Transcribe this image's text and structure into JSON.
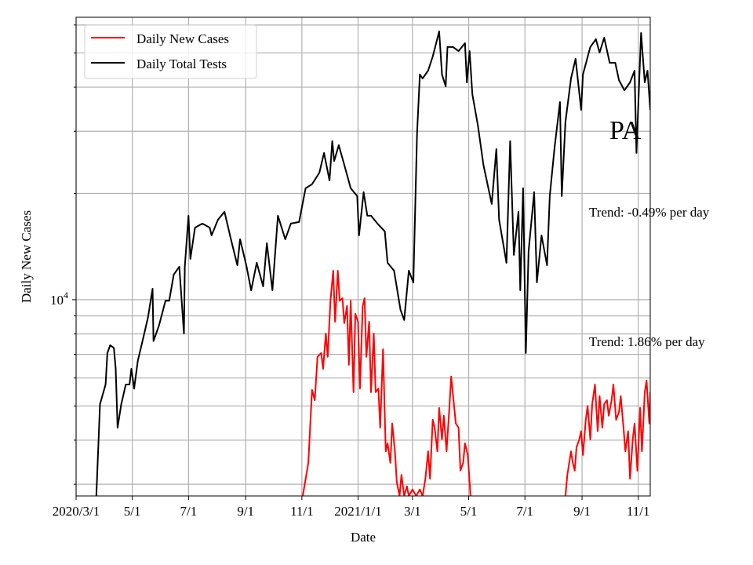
{
  "chart_data": {
    "type": "line",
    "title": "",
    "xlabel": "Date",
    "ylabel": "Daily New Cases",
    "y_scale": "log",
    "ylim": [
      2780,
      63100
    ],
    "xlim": [
      "2020-03-01",
      "2021-11-14"
    ],
    "grid": true,
    "legend_position": "top-left",
    "x_ticks": [
      {
        "date": "2020-03-01",
        "label": "2020/3/1"
      },
      {
        "date": "2020-05-01",
        "label": "5/1"
      },
      {
        "date": "2020-07-01",
        "label": "7/1"
      },
      {
        "date": "2020-09-01",
        "label": "9/1"
      },
      {
        "date": "2020-11-01",
        "label": "11/1"
      },
      {
        "date": "2021-01-01",
        "label": "2021/1/1"
      },
      {
        "date": "2021-03-01",
        "label": "3/1"
      },
      {
        "date": "2021-05-01",
        "label": "5/1"
      },
      {
        "date": "2021-07-01",
        "label": "7/1"
      },
      {
        "date": "2021-09-01",
        "label": "9/1"
      },
      {
        "date": "2021-11-01",
        "label": "11/1"
      }
    ],
    "y_major_tick": {
      "value": 10000,
      "label_base": "10",
      "label_exp": "4"
    },
    "y_minor_ticks": [
      3000,
      4000,
      5000,
      6000,
      7000,
      8000,
      9000,
      20000,
      30000,
      40000,
      50000,
      60000
    ],
    "annotations": [
      {
        "text": "PA",
        "kind": "state"
      },
      {
        "text": "Trend: -0.49% per day",
        "kind": "tests-trend"
      },
      {
        "text": "Trend: 1.86% per day",
        "kind": "cases-trend"
      }
    ],
    "series": [
      {
        "name": "Daily New Cases",
        "color": "#ff0000",
        "points": [
          [
            "2020-11-02",
            2780
          ],
          [
            "2020-11-08",
            3450
          ],
          [
            "2020-11-12",
            5550
          ],
          [
            "2020-11-15",
            5190
          ],
          [
            "2020-11-18",
            6890
          ],
          [
            "2020-11-22",
            7060
          ],
          [
            "2020-11-24",
            6370
          ],
          [
            "2020-11-27",
            8020
          ],
          [
            "2020-11-29",
            6890
          ],
          [
            "2020-12-02",
            9930
          ],
          [
            "2020-12-05",
            12080
          ],
          [
            "2020-12-07",
            8660
          ],
          [
            "2020-12-10",
            12080
          ],
          [
            "2020-12-12",
            9930
          ],
          [
            "2020-12-15",
            10100
          ],
          [
            "2020-12-17",
            8580
          ],
          [
            "2020-12-20",
            9600
          ],
          [
            "2020-12-22",
            6540
          ],
          [
            "2020-12-24",
            9930
          ],
          [
            "2020-12-27",
            5470
          ],
          [
            "2020-12-29",
            9120
          ],
          [
            "2021-01-01",
            8660
          ],
          [
            "2021-01-03",
            5600
          ],
          [
            "2021-01-06",
            9600
          ],
          [
            "2021-01-08",
            10100
          ],
          [
            "2021-01-10",
            6890
          ],
          [
            "2021-01-13",
            8660
          ],
          [
            "2021-01-15",
            5470
          ],
          [
            "2021-01-18",
            8020
          ],
          [
            "2021-01-20",
            5470
          ],
          [
            "2021-01-23",
            5600
          ],
          [
            "2021-01-25",
            4340
          ],
          [
            "2021-01-28",
            7240
          ],
          [
            "2021-01-31",
            3720
          ],
          [
            "2021-02-02",
            3920
          ],
          [
            "2021-02-05",
            3450
          ],
          [
            "2021-02-07",
            4460
          ],
          [
            "2021-02-10",
            3720
          ],
          [
            "2021-02-12",
            3040
          ],
          [
            "2021-02-15",
            2780
          ],
          [
            "2021-02-17",
            3190
          ],
          [
            "2021-02-20",
            2780
          ],
          [
            "2021-02-23",
            2960
          ],
          [
            "2021-02-25",
            2780
          ],
          [
            "2021-03-01",
            2900
          ],
          [
            "2021-03-05",
            2780
          ],
          [
            "2021-03-09",
            2900
          ],
          [
            "2021-03-12",
            2780
          ],
          [
            "2021-03-15",
            3110
          ],
          [
            "2021-03-18",
            3720
          ],
          [
            "2021-03-20",
            3110
          ],
          [
            "2021-03-23",
            4570
          ],
          [
            "2021-03-25",
            4340
          ],
          [
            "2021-03-28",
            3720
          ],
          [
            "2021-03-30",
            4940
          ],
          [
            "2021-04-02",
            4020
          ],
          [
            "2021-04-04",
            4690
          ],
          [
            "2021-04-07",
            3720
          ],
          [
            "2021-04-10",
            4940
          ],
          [
            "2021-04-12",
            6060
          ],
          [
            "2021-04-15",
            5060
          ],
          [
            "2021-04-17",
            4460
          ],
          [
            "2021-04-20",
            4340
          ],
          [
            "2021-04-22",
            3280
          ],
          [
            "2021-04-25",
            3450
          ],
          [
            "2021-04-27",
            3920
          ],
          [
            "2021-04-30",
            3630
          ],
          [
            "2021-05-03",
            2780
          ],
          null,
          [
            "2021-08-14",
            2780
          ],
          [
            "2021-08-16",
            3190
          ],
          [
            "2021-08-20",
            3720
          ],
          [
            "2021-08-22",
            3450
          ],
          [
            "2021-08-24",
            3280
          ],
          [
            "2021-08-26",
            3820
          ],
          [
            "2021-08-29",
            4020
          ],
          [
            "2021-08-31",
            4240
          ],
          [
            "2021-09-02",
            3630
          ],
          [
            "2021-09-05",
            4570
          ],
          [
            "2021-09-07",
            5000
          ],
          [
            "2021-09-10",
            4020
          ],
          [
            "2021-09-12",
            5060
          ],
          [
            "2021-09-15",
            5750
          ],
          [
            "2021-09-18",
            4240
          ],
          [
            "2021-09-20",
            5330
          ],
          [
            "2021-09-23",
            4340
          ],
          [
            "2021-09-25",
            5060
          ],
          [
            "2021-09-28",
            5190
          ],
          [
            "2021-09-30",
            4690
          ],
          [
            "2021-10-03",
            5190
          ],
          [
            "2021-10-05",
            5750
          ],
          [
            "2021-10-08",
            4570
          ],
          [
            "2021-10-11",
            4800
          ],
          [
            "2021-10-13",
            5330
          ],
          [
            "2021-10-16",
            4340
          ],
          [
            "2021-10-18",
            3720
          ],
          [
            "2021-10-21",
            4240
          ],
          [
            "2021-10-23",
            3110
          ],
          [
            "2021-10-26",
            4020
          ],
          [
            "2021-10-28",
            4460
          ],
          [
            "2021-10-31",
            3280
          ],
          [
            "2021-11-03",
            4940
          ],
          [
            "2021-11-05",
            3720
          ],
          [
            "2021-11-08",
            5470
          ],
          [
            "2021-11-10",
            5900
          ],
          [
            "2021-11-13",
            4460
          ],
          [
            "2021-11-14",
            5470
          ]
        ]
      },
      {
        "name": "Daily Total Tests",
        "color": "#000000",
        "points": [
          [
            "2020-03-23",
            2780
          ],
          [
            "2020-03-27",
            5060
          ],
          [
            "2020-04-02",
            5750
          ],
          [
            "2020-04-04",
            7060
          ],
          [
            "2020-04-07",
            7430
          ],
          [
            "2020-04-11",
            7300
          ],
          [
            "2020-04-13",
            6370
          ],
          [
            "2020-04-15",
            4340
          ],
          [
            "2020-04-19",
            5060
          ],
          [
            "2020-04-24",
            5750
          ],
          [
            "2020-04-28",
            5750
          ],
          [
            "2020-04-30",
            6370
          ],
          [
            "2020-05-03",
            5600
          ],
          [
            "2020-05-07",
            6710
          ],
          [
            "2020-05-13",
            7820
          ],
          [
            "2020-05-18",
            8890
          ],
          [
            "2020-05-23",
            10740
          ],
          [
            "2020-05-24",
            7630
          ],
          [
            "2020-05-30",
            8450
          ],
          [
            "2020-06-06",
            9930
          ],
          [
            "2020-06-10",
            9930
          ],
          [
            "2020-06-15",
            11780
          ],
          [
            "2020-06-21",
            12400
          ],
          [
            "2020-06-26",
            8020
          ],
          [
            "2020-06-27",
            12400
          ],
          [
            "2020-07-01",
            17290
          ],
          [
            "2020-07-03",
            13050
          ],
          [
            "2020-07-08",
            16000
          ],
          [
            "2020-07-16",
            16430
          ],
          [
            "2020-07-24",
            16000
          ],
          [
            "2020-07-26",
            15210
          ],
          [
            "2020-08-02",
            16850
          ],
          [
            "2020-08-09",
            17740
          ],
          [
            "2020-08-16",
            14830
          ],
          [
            "2020-08-23",
            12520
          ],
          [
            "2020-08-26",
            14830
          ],
          [
            "2020-09-02",
            12400
          ],
          [
            "2020-09-07",
            10630
          ],
          [
            "2020-09-13",
            12720
          ],
          [
            "2020-09-20",
            10910
          ],
          [
            "2020-09-24",
            14450
          ],
          [
            "2020-09-30",
            10630
          ],
          [
            "2020-10-06",
            17290
          ],
          [
            "2020-10-14",
            14830
          ],
          [
            "2020-10-20",
            16430
          ],
          [
            "2020-10-29",
            16600
          ],
          [
            "2020-11-05",
            20690
          ],
          [
            "2020-11-12",
            21230
          ],
          [
            "2020-11-20",
            22900
          ],
          [
            "2020-11-25",
            26040
          ],
          [
            "2020-12-01",
            21760
          ],
          [
            "2020-12-04",
            28120
          ],
          [
            "2020-12-06",
            24700
          ],
          [
            "2020-12-11",
            27400
          ],
          [
            "2020-12-17",
            24100
          ],
          [
            "2020-12-24",
            20690
          ],
          [
            "2020-12-31",
            19650
          ],
          [
            "2021-01-02",
            15210
          ],
          [
            "2021-01-07",
            20160
          ],
          [
            "2021-01-11",
            17290
          ],
          [
            "2021-01-15",
            17290
          ],
          [
            "2021-01-22",
            16430
          ],
          [
            "2021-01-30",
            15610
          ],
          [
            "2021-02-02",
            12720
          ],
          [
            "2021-02-09",
            12080
          ],
          [
            "2021-02-16",
            9360
          ],
          [
            "2021-02-20",
            8760
          ],
          [
            "2021-02-25",
            12080
          ],
          [
            "2021-03-02",
            11190
          ],
          [
            "2021-03-06",
            29580
          ],
          [
            "2021-03-09",
            43450
          ],
          [
            "2021-03-12",
            42360
          ],
          [
            "2021-03-18",
            44560
          ],
          [
            "2021-03-23",
            48840
          ],
          [
            "2021-03-30",
            57540
          ],
          [
            "2021-04-02",
            43450
          ],
          [
            "2021-04-06",
            40220
          ],
          [
            "2021-04-08",
            51970
          ],
          [
            "2021-04-14",
            51970
          ],
          [
            "2021-04-20",
            50620
          ],
          [
            "2021-04-27",
            53290
          ],
          [
            "2021-04-29",
            41260
          ],
          [
            "2021-05-02",
            50620
          ],
          [
            "2021-05-05",
            38190
          ],
          [
            "2021-05-11",
            31140
          ],
          [
            "2021-05-17",
            24100
          ],
          [
            "2021-05-26",
            18670
          ],
          [
            "2021-05-31",
            26710
          ],
          [
            "2021-06-03",
            16850
          ],
          [
            "2021-06-11",
            12720
          ],
          [
            "2021-06-15",
            28120
          ],
          [
            "2021-06-19",
            13390
          ],
          [
            "2021-06-24",
            17740
          ],
          [
            "2021-06-26",
            10630
          ],
          [
            "2021-06-29",
            20690
          ],
          [
            "2021-07-02",
            7060
          ],
          [
            "2021-07-05",
            13730
          ],
          [
            "2021-07-11",
            20160
          ],
          [
            "2021-07-14",
            11190
          ],
          [
            "2021-07-19",
            15210
          ],
          [
            "2021-07-25",
            12520
          ],
          [
            "2021-07-28",
            19650
          ],
          [
            "2021-08-02",
            26710
          ],
          [
            "2021-08-08",
            36310
          ],
          [
            "2021-08-10",
            19650
          ],
          [
            "2021-08-14",
            31930
          ],
          [
            "2021-08-20",
            42360
          ],
          [
            "2021-08-25",
            48110
          ],
          [
            "2021-08-31",
            34500
          ],
          [
            "2021-09-02",
            43450
          ],
          [
            "2021-09-10",
            51970
          ],
          [
            "2021-09-16",
            54700
          ],
          [
            "2021-09-20",
            50120
          ],
          [
            "2021-09-25",
            55210
          ],
          [
            "2021-10-01",
            46890
          ],
          [
            "2021-10-07",
            46890
          ],
          [
            "2021-10-11",
            41880
          ],
          [
            "2021-10-17",
            39190
          ],
          [
            "2021-10-23",
            41260
          ],
          [
            "2021-10-28",
            44560
          ],
          [
            "2021-10-30",
            26040
          ],
          [
            "2021-11-04",
            56950
          ],
          [
            "2021-11-08",
            41260
          ],
          [
            "2021-11-11",
            44560
          ],
          [
            "2021-11-14",
            34500
          ]
        ]
      }
    ]
  }
}
